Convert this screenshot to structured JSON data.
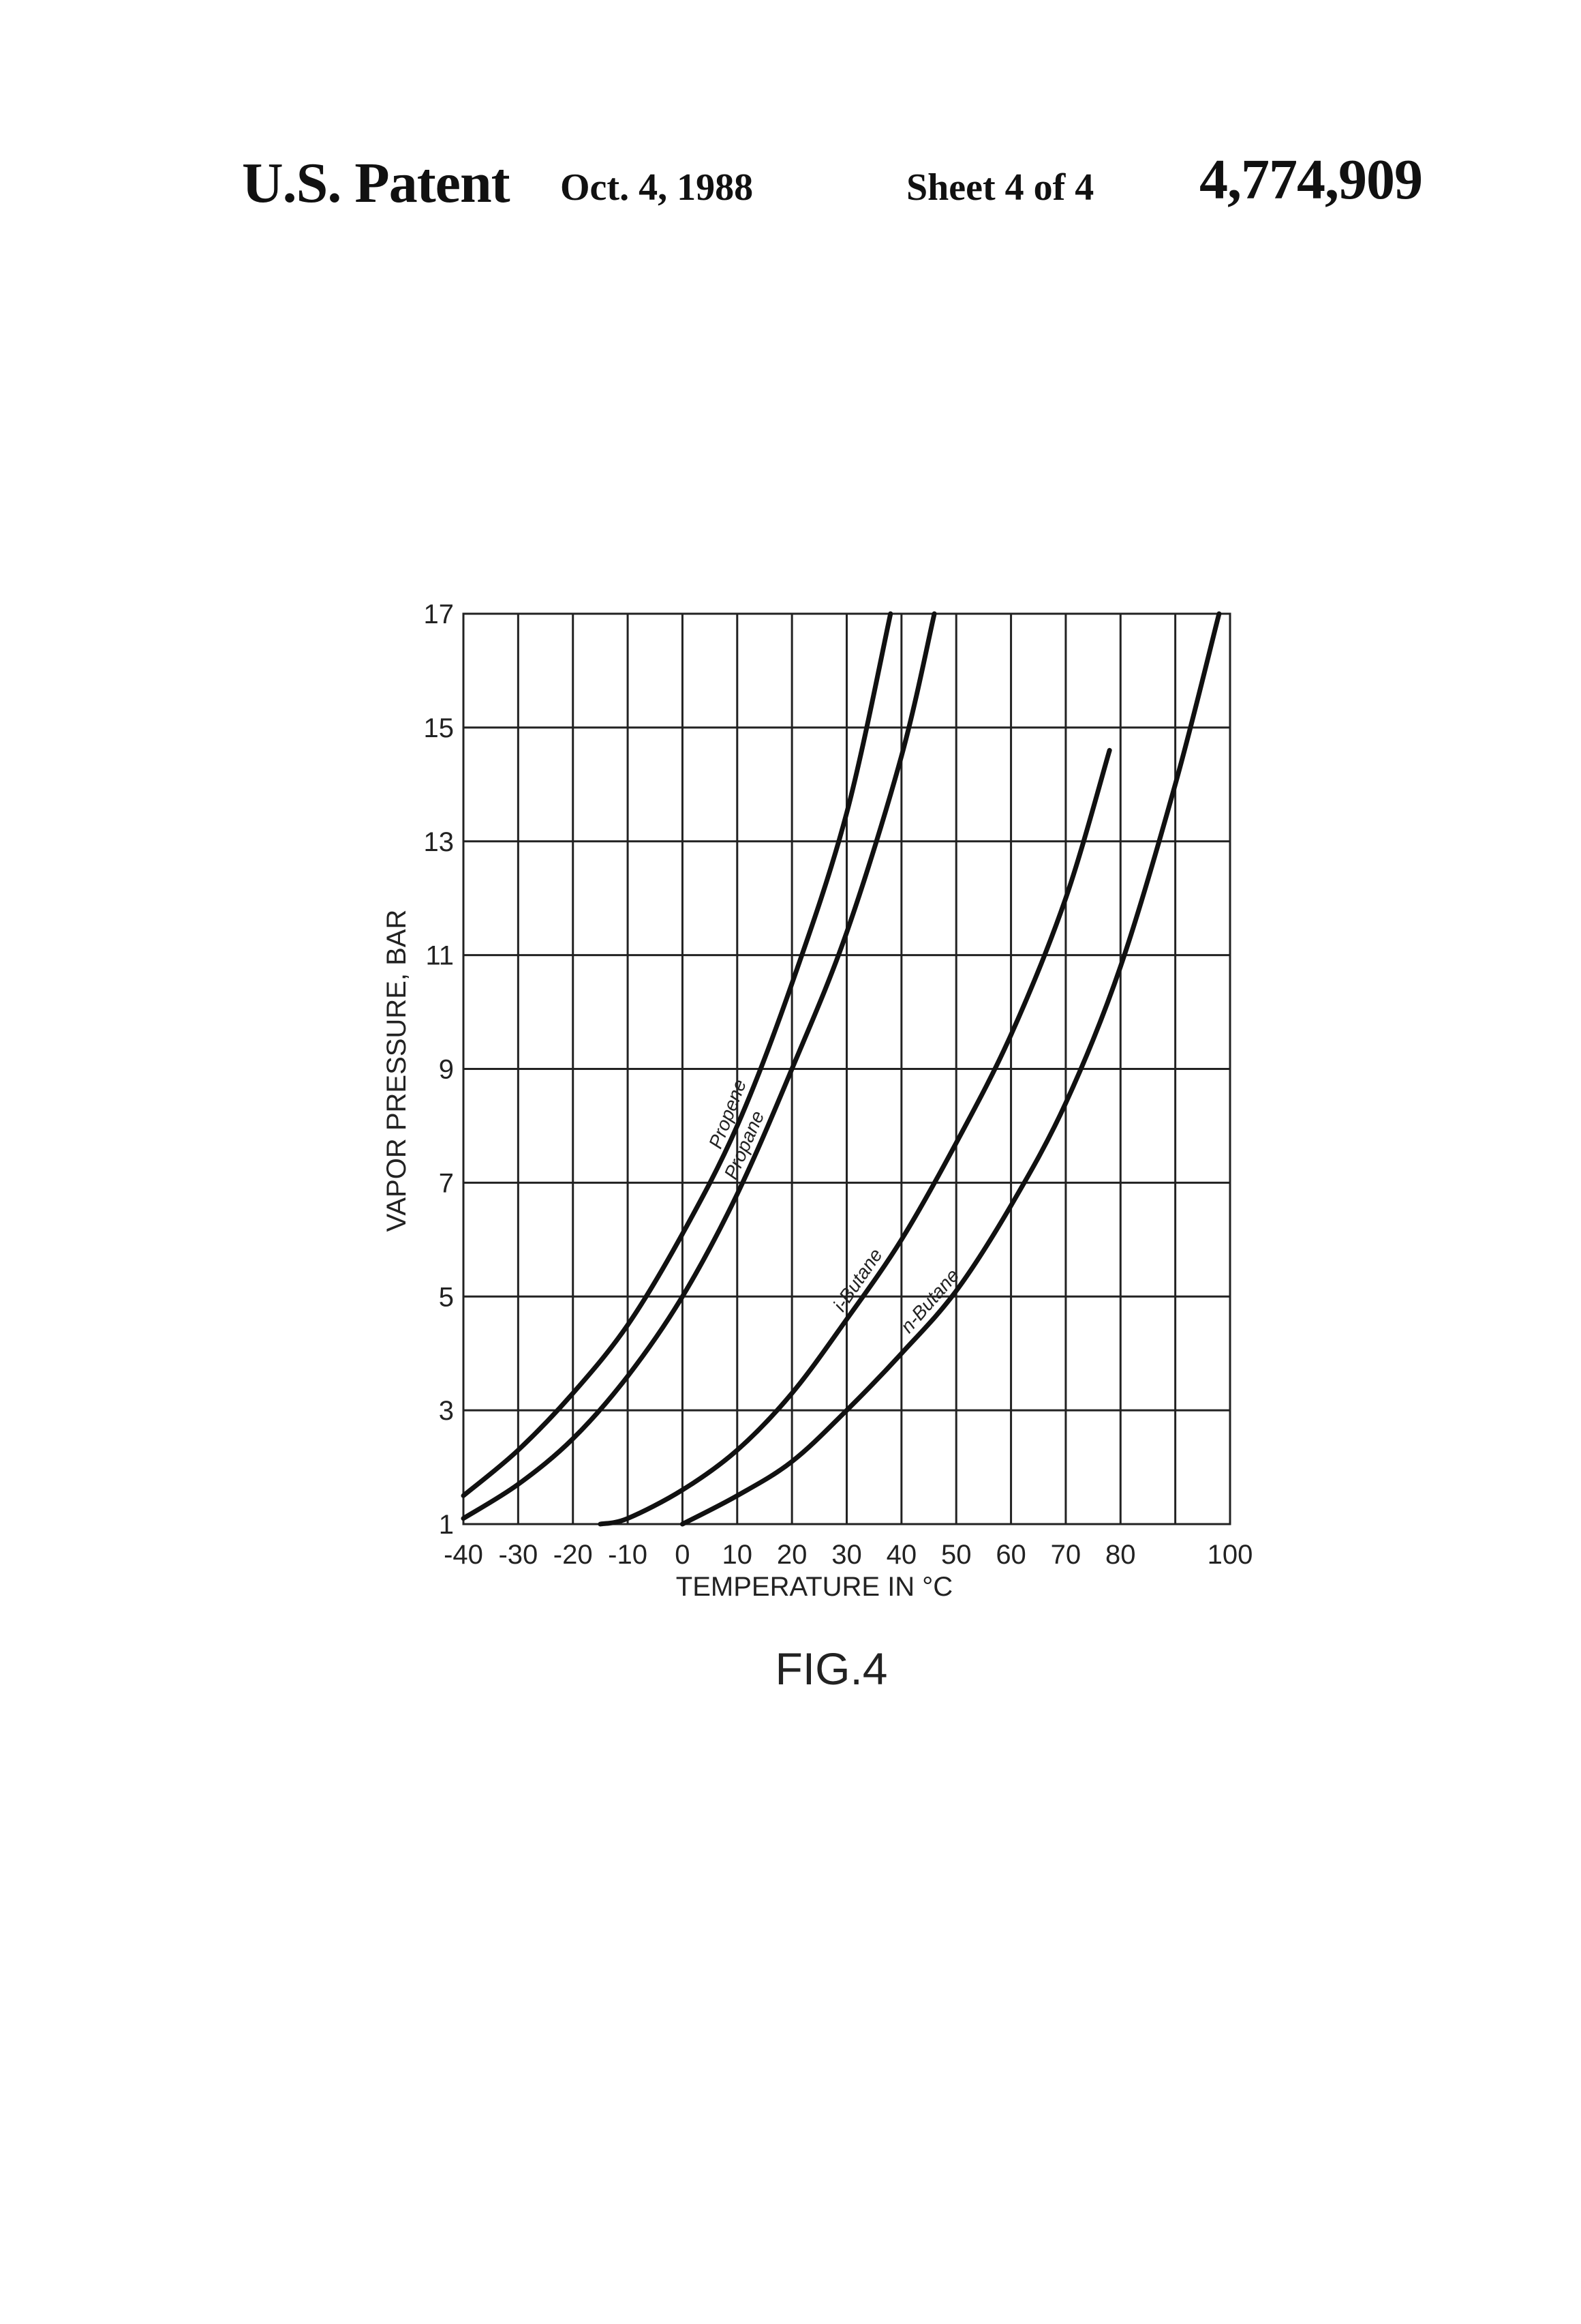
{
  "header": {
    "patent_label": "U.S. Patent",
    "date": "Oct. 4, 1988",
    "sheet": "Sheet 4 of 4",
    "patent_number": "4,774,909"
  },
  "figure_label": "FIG.4",
  "chart_data": {
    "type": "line",
    "title": "",
    "xlabel": "TEMPERATURE IN °C",
    "ylabel": "VAPOR PRESSURE, BAR",
    "xlim": [
      -40,
      100
    ],
    "ylim": [
      1,
      17
    ],
    "x_ticks": [
      -40,
      -30,
      -20,
      -10,
      0,
      10,
      20,
      30,
      40,
      50,
      60,
      70,
      80,
      100
    ],
    "x_tick_labels": [
      "-40",
      "-30",
      "-20",
      "-10",
      "0",
      "10",
      "20",
      "30",
      "40",
      "50",
      "60",
      "70",
      "80",
      "100"
    ],
    "y_ticks": [
      1,
      3,
      5,
      7,
      9,
      11,
      13,
      15,
      17
    ],
    "y_tick_labels": [
      "1",
      "3",
      "5",
      "7",
      "9",
      "11",
      "13",
      "15",
      "17"
    ],
    "grid": true,
    "legend": "none",
    "series": [
      {
        "name": "Propene",
        "x": [
          -40,
          -30,
          -20,
          -10,
          0,
          10,
          20,
          30,
          38
        ],
        "y": [
          1.5,
          2.3,
          3.3,
          4.5,
          6.1,
          8.0,
          10.5,
          13.5,
          17.0
        ]
      },
      {
        "name": "Propane",
        "x": [
          -40,
          -30,
          -20,
          -10,
          0,
          10,
          20,
          30,
          40,
          46
        ],
        "y": [
          1.1,
          1.7,
          2.5,
          3.6,
          5.0,
          6.8,
          9.0,
          11.4,
          14.5,
          17.0
        ]
      },
      {
        "name": "i-Butane",
        "x": [
          -15,
          -10,
          0,
          10,
          20,
          30,
          40,
          50,
          60,
          70,
          78
        ],
        "y": [
          1.0,
          1.1,
          1.6,
          2.3,
          3.3,
          4.6,
          6.0,
          7.7,
          9.6,
          12.0,
          14.6
        ]
      },
      {
        "name": "n-Butane",
        "x": [
          0,
          10,
          20,
          30,
          40,
          50,
          60,
          70,
          80,
          90,
          98
        ],
        "y": [
          1.0,
          1.5,
          2.1,
          3.0,
          4.0,
          5.1,
          6.6,
          8.4,
          10.8,
          14.0,
          17.0
        ]
      }
    ]
  }
}
